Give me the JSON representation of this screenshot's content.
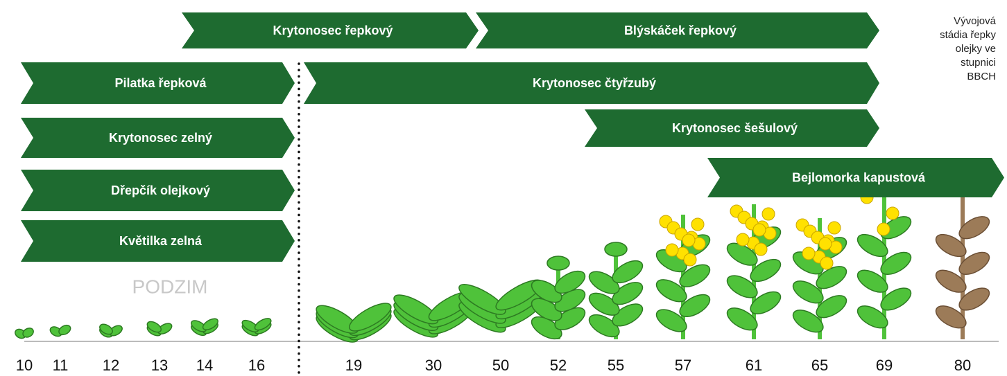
{
  "arrows": [
    {
      "label": "Krytonosec řepkový"
    },
    {
      "label": "Blýskáček řepkový"
    },
    {
      "label": "Pilatka řepková"
    },
    {
      "label": "Krytonosec čtyřzubý"
    },
    {
      "label": "Krytonosec zelný"
    },
    {
      "label": "Krytonosec šešulový"
    },
    {
      "label": "Dřepčík olejkový"
    },
    {
      "label": "Bejlomorka kapustová"
    },
    {
      "label": "Květilka zelná"
    }
  ],
  "season_label": "PODZIM",
  "legend_lines": [
    "Vývojová",
    "stádia řepky",
    "olejky ve",
    "stupnici",
    "BBCH"
  ],
  "stages": [
    "10",
    "11",
    "12",
    "13",
    "14",
    "16",
    "19",
    "30",
    "50",
    "52",
    "55",
    "57",
    "61",
    "65",
    "69",
    "80"
  ]
}
